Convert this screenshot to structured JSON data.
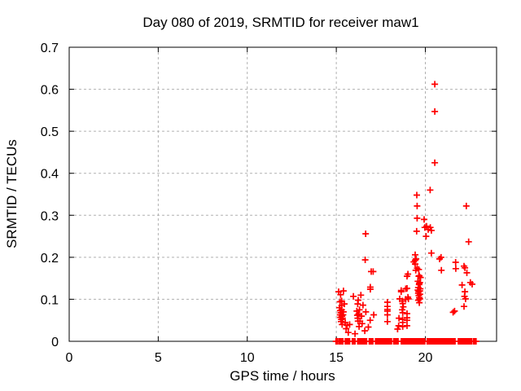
{
  "window": {
    "background": "#ffffff"
  },
  "colors": {
    "marker": "#ff0000",
    "grid": "#b0b0b0",
    "axis": "#000000",
    "text": "#000000",
    "background": "#ffffff"
  },
  "chart_data": {
    "type": "scatter",
    "title": "Day 080 of 2019, SRMTID for receiver maw1",
    "xlabel": "GPS time / hours",
    "ylabel": "SRMTID / TECUs",
    "xlim": [
      0,
      24
    ],
    "ylim": [
      0,
      0.7
    ],
    "xtick_values": [
      0,
      5,
      10,
      15,
      20
    ],
    "xtick_labels": [
      "0",
      "5",
      "10",
      "15",
      "20"
    ],
    "ytick_values": [
      0,
      0.1,
      0.2,
      0.3,
      0.4,
      0.5,
      0.6,
      0.7
    ],
    "ytick_labels": [
      "0",
      "0.1",
      "0.2",
      "0.3",
      "0.4",
      "0.5",
      "0.6",
      "0.7"
    ],
    "grid": true,
    "grid_style": "dashed",
    "legend": "none",
    "marker": "plus",
    "marker_color": "#ff0000",
    "points": [
      [
        15.13,
        0.118
      ],
      [
        15.24,
        0.111
      ],
      [
        15.4,
        0.12
      ],
      [
        15.21,
        0.094
      ],
      [
        15.3,
        0.096
      ],
      [
        15.45,
        0.089
      ],
      [
        15.3,
        0.085
      ],
      [
        15.18,
        0.08
      ],
      [
        15.3,
        0.075
      ],
      [
        15.22,
        0.073
      ],
      [
        15.4,
        0.07
      ],
      [
        15.25,
        0.068
      ],
      [
        15.21,
        0.063
      ],
      [
        15.38,
        0.063
      ],
      [
        15.32,
        0.06
      ],
      [
        15.23,
        0.057
      ],
      [
        15.35,
        0.055
      ],
      [
        15.28,
        0.052
      ],
      [
        15.27,
        0.047
      ],
      [
        15.5,
        0.045
      ],
      [
        15.33,
        0.04
      ],
      [
        15.6,
        0.038
      ],
      [
        15.75,
        0.04
      ],
      [
        15.55,
        0.03
      ],
      [
        15.67,
        0.021
      ],
      [
        15.96,
        0.107
      ],
      [
        16.05,
        0.018
      ],
      [
        16.23,
        0.098
      ],
      [
        16.2,
        0.089
      ],
      [
        16.5,
        0.086
      ],
      [
        16.38,
        0.11
      ],
      [
        16.3,
        0.075
      ],
      [
        16.15,
        0.072
      ],
      [
        16.25,
        0.065
      ],
      [
        16.18,
        0.062
      ],
      [
        16.2,
        0.055
      ],
      [
        16.22,
        0.048
      ],
      [
        16.33,
        0.048
      ],
      [
        16.28,
        0.035
      ],
      [
        16.42,
        0.06
      ],
      [
        16.45,
        0.042
      ],
      [
        16.65,
        0.256
      ],
      [
        16.62,
        0.194
      ],
      [
        16.96,
        0.166
      ],
      [
        16.91,
        0.129
      ],
      [
        16.91,
        0.124
      ],
      [
        16.66,
        0.07
      ],
      [
        16.9,
        0.05
      ],
      [
        16.8,
        0.034
      ],
      [
        16.6,
        0.025
      ],
      [
        17.07,
        0.166
      ],
      [
        17.1,
        0.063
      ],
      [
        17.87,
        0.093
      ],
      [
        17.87,
        0.083
      ],
      [
        17.87,
        0.076
      ],
      [
        17.87,
        0.072
      ],
      [
        17.87,
        0.063
      ],
      [
        17.87,
        0.047
      ],
      [
        18.44,
        0.029
      ],
      [
        18.5,
        0.037
      ],
      [
        18.52,
        0.055
      ],
      [
        18.56,
        0.101
      ],
      [
        18.64,
        0.121
      ],
      [
        18.64,
        0.118
      ],
      [
        18.7,
        0.096
      ],
      [
        18.7,
        0.075
      ],
      [
        18.73,
        0.09
      ],
      [
        18.73,
        0.068
      ],
      [
        18.73,
        0.052
      ],
      [
        18.73,
        0.045
      ],
      [
        18.73,
        0.035
      ],
      [
        18.76,
        0.082
      ],
      [
        18.9,
        0.125
      ],
      [
        18.9,
        0.1
      ],
      [
        18.97,
        0.155
      ],
      [
        18.97,
        0.126
      ],
      [
        18.97,
        0.066
      ],
      [
        18.97,
        0.056
      ],
      [
        18.97,
        0.05
      ],
      [
        18.97,
        0.037
      ],
      [
        19.02,
        0.16
      ],
      [
        19.02,
        0.105
      ],
      [
        19.05,
        0.101
      ],
      [
        19.35,
        0.189
      ],
      [
        19.43,
        0.206
      ],
      [
        19.43,
        0.193
      ],
      [
        19.43,
        0.184
      ],
      [
        19.46,
        0.169
      ],
      [
        19.48,
        0.196
      ],
      [
        19.51,
        0.262
      ],
      [
        19.52,
        0.348
      ],
      [
        19.54,
        0.322
      ],
      [
        19.54,
        0.293
      ],
      [
        19.54,
        0.174
      ],
      [
        19.58,
        0.143
      ],
      [
        19.58,
        0.122
      ],
      [
        19.6,
        0.128
      ],
      [
        19.6,
        0.114
      ],
      [
        19.6,
        0.098
      ],
      [
        19.62,
        0.118
      ],
      [
        19.63,
        0.171
      ],
      [
        19.63,
        0.155
      ],
      [
        19.63,
        0.109
      ],
      [
        19.65,
        0.135
      ],
      [
        19.66,
        0.156
      ],
      [
        19.66,
        0.138
      ],
      [
        19.66,
        0.104
      ],
      [
        19.66,
        0.092
      ],
      [
        19.69,
        0.14
      ],
      [
        19.69,
        0.12
      ],
      [
        19.69,
        0.101
      ],
      [
        19.7,
        0.112
      ],
      [
        19.71,
        0.125
      ],
      [
        19.73,
        0.152
      ],
      [
        19.93,
        0.29
      ],
      [
        19.97,
        0.271
      ],
      [
        20.04,
        0.25
      ],
      [
        20.07,
        0.274
      ],
      [
        20.16,
        0.266
      ],
      [
        20.27,
        0.36
      ],
      [
        20.28,
        0.271
      ],
      [
        20.34,
        0.264
      ],
      [
        20.34,
        0.21
      ],
      [
        20.53,
        0.612
      ],
      [
        20.53,
        0.547
      ],
      [
        20.53,
        0.425
      ],
      [
        20.8,
        0.196
      ],
      [
        20.88,
        0.2
      ],
      [
        20.9,
        0.169
      ],
      [
        21.56,
        0.069
      ],
      [
        21.64,
        0.072
      ],
      [
        21.7,
        0.188
      ],
      [
        21.71,
        0.173
      ],
      [
        22.06,
        0.134
      ],
      [
        22.17,
        0.179
      ],
      [
        22.17,
        0.083
      ],
      [
        22.2,
        0.107
      ],
      [
        22.22,
        0.175
      ],
      [
        22.22,
        0.118
      ],
      [
        22.26,
        0.101
      ],
      [
        22.3,
        0.322
      ],
      [
        22.33,
        0.163
      ],
      [
        22.43,
        0.237
      ],
      [
        22.53,
        0.14
      ],
      [
        22.63,
        0.136
      ]
    ],
    "zero_band": {
      "y": 0,
      "runs": [
        [
          14.98,
          15.1
        ],
        [
          15.17,
          15.37
        ],
        [
          15.5,
          15.78
        ],
        [
          15.9,
          16.08
        ],
        [
          16.2,
          16.73
        ],
        [
          16.85,
          17.08
        ],
        [
          17.2,
          18.1
        ],
        [
          18.22,
          18.5
        ],
        [
          18.65,
          19.5
        ],
        [
          19.57,
          19.97
        ],
        [
          20.1,
          21.35
        ],
        [
          21.42,
          21.7
        ],
        [
          21.85,
          22.62
        ],
        [
          22.7,
          22.88
        ]
      ],
      "step_hours": 0.05
    }
  }
}
